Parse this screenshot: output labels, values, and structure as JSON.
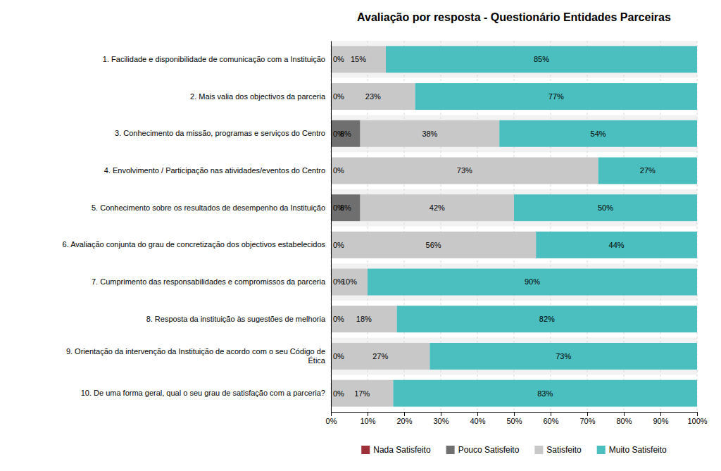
{
  "chart_data": {
    "type": "bar",
    "orientation": "horizontal",
    "stacked": true,
    "title": "Avaliação por resposta - Questionário Entidades  Parceiras",
    "categories": [
      "10. De uma forma geral, qual o seu grau de satisfação com a parceria?",
      "9. Orientação da intervenção da Instituição de acordo com o seu Código de\nÉtica",
      "8. Resposta da instituição às sugestões de melhoria",
      "7. Cumprimento das responsabilidades e compromissos da parceria",
      "6. Avaliação conjunta do grau de concretização dos objectivos estabelecidos",
      "5. Conhecimento sobre os resultados de desempenho da Instituição",
      "4. Envolvimento / Participação nas atividades/eventos do Centro",
      "3. Conhecimento da missão, programas e serviços do Centro",
      "2. Mais valia dos objectivos da parceria",
      "1. Facilidade e disponibilidade de comunicação com a Instituição"
    ],
    "series": [
      {
        "name": "Nada Satisfeito",
        "color": "#9e3039",
        "values": [
          0,
          0,
          0,
          0,
          0,
          0,
          0,
          0,
          0,
          0
        ],
        "value_labels": [
          "0%",
          "0%",
          "0%",
          "0%",
          "0%",
          "0%",
          "0%",
          "0%",
          "0%",
          "0%"
        ]
      },
      {
        "name": "Pouco Satisfeito",
        "color": "#706f6f",
        "values": [
          0,
          0,
          0,
          0,
          0,
          8,
          0,
          8,
          0,
          0
        ],
        "value_labels": [
          null,
          null,
          null,
          null,
          null,
          "8%",
          null,
          "8%",
          null,
          null
        ]
      },
      {
        "name": "Satisfeito",
        "color": "#c8c8c8",
        "values": [
          17,
          27,
          18,
          10,
          56,
          42,
          73,
          38,
          23,
          15
        ],
        "value_labels": [
          "17%",
          "27%",
          "18%",
          "10%",
          "56%",
          "42%",
          "73%",
          "38%",
          "23%",
          "15%"
        ]
      },
      {
        "name": "Muito Satisfeito",
        "color": "#4bbfbf",
        "values": [
          83,
          73,
          82,
          90,
          44,
          50,
          27,
          54,
          77,
          85
        ],
        "value_labels": [
          "83%",
          "73%",
          "82%",
          "90%",
          "44%",
          "50%",
          "27%",
          "54%",
          "77%",
          "85%"
        ]
      }
    ],
    "xlim": [
      0,
      100
    ],
    "xticks": [
      {
        "value": 0,
        "label": "0%"
      },
      {
        "value": 10,
        "label": "10%"
      },
      {
        "value": 20,
        "label": "20%"
      },
      {
        "value": 30,
        "label": "30%"
      },
      {
        "value": 40,
        "label": "40%"
      },
      {
        "value": 50,
        "label": "50%"
      },
      {
        "value": 60,
        "label": "60%"
      },
      {
        "value": 70,
        "label": "70%"
      },
      {
        "value": 80,
        "label": "80%"
      },
      {
        "value": 90,
        "label": "90%"
      },
      {
        "value": 100,
        "label": "100%"
      }
    ],
    "grid": true,
    "data_labels": true,
    "legend": "bottom"
  }
}
